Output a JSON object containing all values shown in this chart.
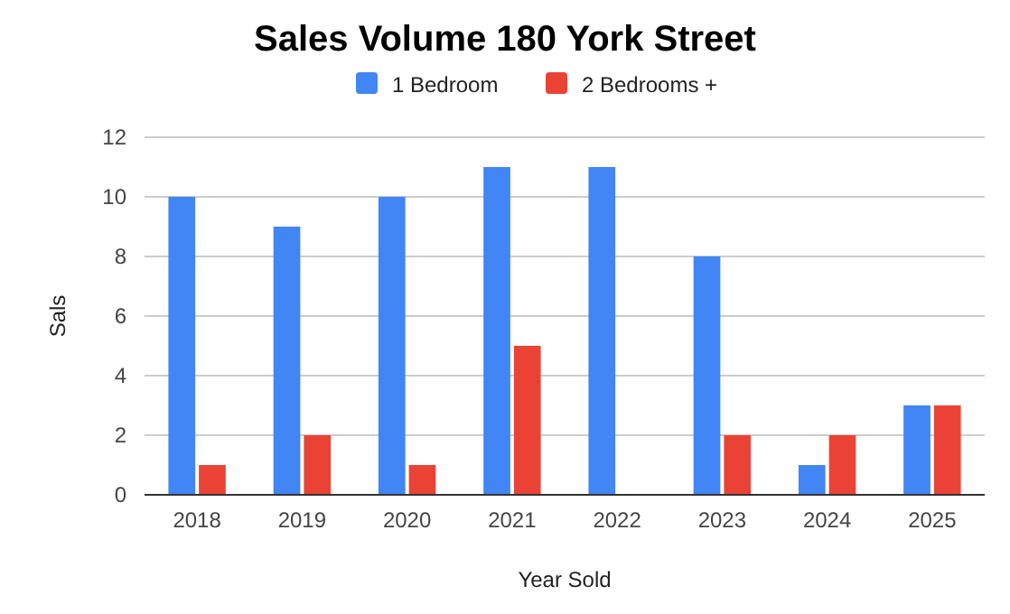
{
  "chart_data": {
    "type": "bar",
    "title": "Sales Volume 180 York Street",
    "xlabel": "Year Sold",
    "ylabel": "Sals",
    "categories": [
      "2018",
      "2019",
      "2020",
      "2021",
      "2022",
      "2023",
      "2024",
      "2025"
    ],
    "series": [
      {
        "name": "1 Bedroom",
        "color": "#4285f4",
        "values": [
          10,
          9,
          10,
          11,
          11,
          8,
          1,
          3
        ]
      },
      {
        "name": "2 Bedrooms +",
        "color": "#ea4335",
        "values": [
          1,
          2,
          1,
          5,
          0,
          2,
          2,
          3
        ]
      }
    ],
    "ylim": [
      0,
      12
    ],
    "yticks": [
      0,
      2,
      4,
      6,
      8,
      10,
      12
    ],
    "grid": "y",
    "legend": "top"
  }
}
